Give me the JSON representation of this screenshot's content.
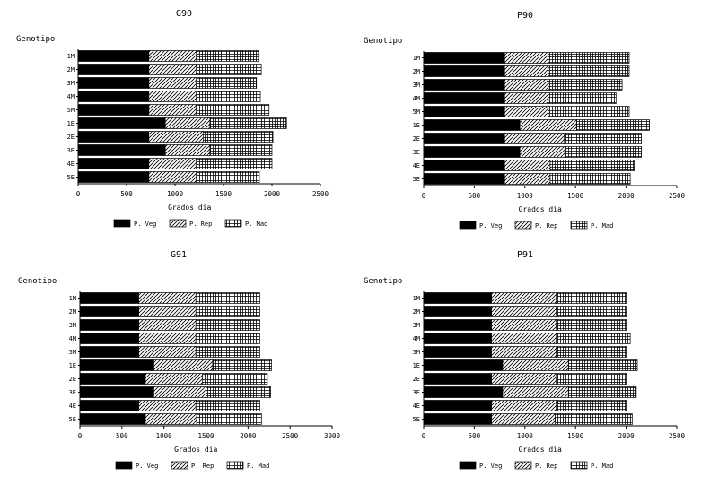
{
  "chart_data": [
    {
      "type": "bar",
      "orientation": "horizontal",
      "stacked": true,
      "title": "G90",
      "ylabel": "Genotipo",
      "xlabel": "Grados dia",
      "xlim": [
        0,
        2500
      ],
      "xticks": [
        "0",
        "500",
        "1000",
        "1500",
        "2000",
        "2500"
      ],
      "categories": [
        "1M",
        "2M",
        "3M",
        "4M",
        "5M",
        "1E",
        "2E",
        "3E",
        "4E",
        "5E"
      ],
      "series": [
        {
          "name": "P. Veg",
          "values": [
            730,
            730,
            730,
            730,
            730,
            900,
            730,
            900,
            730,
            730
          ]
        },
        {
          "name": "P. Rep",
          "values": [
            490,
            490,
            490,
            490,
            490,
            460,
            560,
            460,
            490,
            490
          ]
        },
        {
          "name": "P. Mad",
          "values": [
            640,
            670,
            620,
            660,
            750,
            790,
            720,
            640,
            780,
            650
          ]
        }
      ],
      "legend_position": "bottom"
    },
    {
      "type": "bar",
      "orientation": "horizontal",
      "stacked": true,
      "title": "P90",
      "ylabel": "Genotipo",
      "xlabel": "Grados dia",
      "xlim": [
        0,
        2500
      ],
      "xticks": [
        "0",
        "500",
        "1000",
        "1500",
        "2000",
        "2500"
      ],
      "categories": [
        "1M",
        "2M",
        "3M",
        "4M",
        "5M",
        "1E",
        "2E",
        "3E",
        "4E",
        "5E"
      ],
      "series": [
        {
          "name": "P. Veg",
          "values": [
            800,
            800,
            800,
            800,
            800,
            950,
            800,
            950,
            800,
            800
          ]
        },
        {
          "name": "P. Rep",
          "values": [
            430,
            430,
            430,
            430,
            430,
            560,
            590,
            450,
            450,
            450
          ]
        },
        {
          "name": "P. Mad",
          "values": [
            800,
            800,
            730,
            670,
            800,
            720,
            760,
            750,
            830,
            790
          ]
        }
      ],
      "legend_position": "bottom"
    },
    {
      "type": "bar",
      "orientation": "horizontal",
      "stacked": true,
      "title": "G91",
      "ylabel": "Genotipo",
      "xlabel": "Grados dia",
      "xlim": [
        0,
        3000
      ],
      "xticks": [
        "0",
        "500",
        "1000",
        "1500",
        "2000",
        "2500",
        "3000"
      ],
      "categories": [
        "1M",
        "2M",
        "3M",
        "4M",
        "5M",
        "1E",
        "2E",
        "3E",
        "4E",
        "5E"
      ],
      "series": [
        {
          "name": "P. Veg",
          "values": [
            700,
            700,
            700,
            700,
            700,
            880,
            780,
            880,
            700,
            780
          ]
        },
        {
          "name": "P. Rep",
          "values": [
            680,
            680,
            680,
            680,
            680,
            700,
            680,
            620,
            680,
            610
          ]
        },
        {
          "name": "P. Mad",
          "values": [
            760,
            760,
            760,
            760,
            760,
            700,
            770,
            770,
            760,
            770
          ]
        }
      ],
      "legend_position": "bottom"
    },
    {
      "type": "bar",
      "orientation": "horizontal",
      "stacked": true,
      "title": "P91",
      "ylabel": "Genotipo",
      "xlabel": "Grados dia",
      "xlim": [
        0,
        2500
      ],
      "xticks": [
        "0",
        "500",
        "1000",
        "1500",
        "2000",
        "2500"
      ],
      "categories": [
        "1M",
        "2M",
        "3M",
        "4M",
        "5M",
        "1E",
        "2E",
        "3E",
        "4E",
        "5E"
      ],
      "series": [
        {
          "name": "P. Veg",
          "values": [
            670,
            670,
            670,
            670,
            670,
            780,
            670,
            780,
            670,
            670
          ]
        },
        {
          "name": "P. Rep",
          "values": [
            640,
            640,
            640,
            640,
            640,
            650,
            640,
            650,
            640,
            630
          ]
        },
        {
          "name": "P. Mad",
          "values": [
            690,
            690,
            690,
            730,
            690,
            680,
            690,
            670,
            690,
            760
          ]
        }
      ],
      "legend_position": "bottom"
    }
  ],
  "colors": {
    "p_veg": "#000000",
    "p_rep": "diagonal-hatch",
    "p_mad": "grid-hatch",
    "axis": "#000000",
    "background": "#ffffff"
  }
}
